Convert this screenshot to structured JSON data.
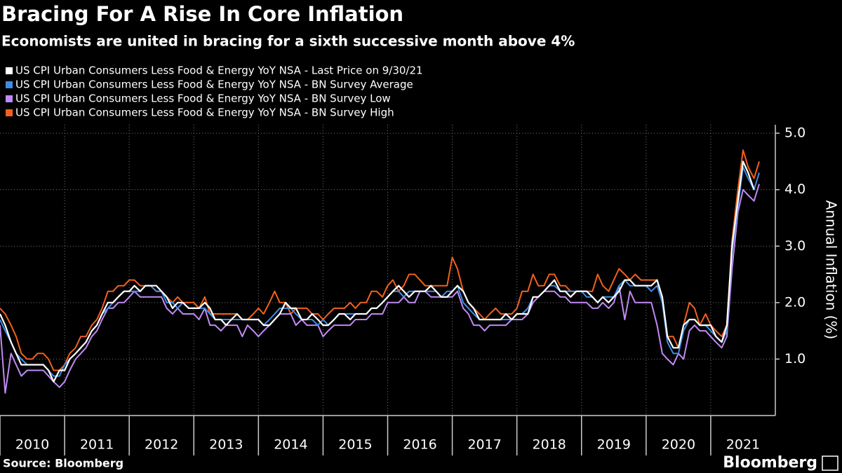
{
  "chart_data": {
    "type": "line",
    "title": "Bracing For A Rise In Core Inflation",
    "subtitle": "Economists are united in bracing for a sixth successive month above 4%",
    "y_axis_label": "Annual Inflation (%)",
    "source": "Source: Bloomberg",
    "brand": "Bloomberg",
    "xlim": [
      2010,
      2022
    ],
    "xticks": [
      {
        "value": 2010,
        "label": "2010"
      },
      {
        "value": 2011,
        "label": "2011"
      },
      {
        "value": 2012,
        "label": "2012"
      },
      {
        "value": 2013,
        "label": "2013"
      },
      {
        "value": 2014,
        "label": "2014"
      },
      {
        "value": 2015,
        "label": "2015"
      },
      {
        "value": 2016,
        "label": "2016"
      },
      {
        "value": 2017,
        "label": "2017"
      },
      {
        "value": 2018,
        "label": "2018"
      },
      {
        "value": 2019,
        "label": "2019"
      },
      {
        "value": 2020,
        "label": "2020"
      },
      {
        "value": 2021,
        "label": "2021"
      }
    ],
    "ylim": [
      0,
      5.15
    ],
    "yticks": [
      {
        "value": 1,
        "label": "1.0"
      },
      {
        "value": 2,
        "label": "2.0"
      },
      {
        "value": 3,
        "label": "3.0"
      },
      {
        "value": 4,
        "label": "4.0"
      },
      {
        "value": 5,
        "label": "5.0"
      }
    ],
    "grid": true,
    "y_axis_side": "right",
    "x": [
      2010.0,
      2010.08,
      2010.17,
      2010.25,
      2010.33,
      2010.42,
      2010.5,
      2010.58,
      2010.67,
      2010.75,
      2010.83,
      2010.92,
      2011.0,
      2011.08,
      2011.17,
      2011.25,
      2011.33,
      2011.42,
      2011.5,
      2011.58,
      2011.67,
      2011.75,
      2011.83,
      2011.92,
      2012.0,
      2012.08,
      2012.17,
      2012.25,
      2012.33,
      2012.42,
      2012.5,
      2012.58,
      2012.67,
      2012.75,
      2012.83,
      2012.92,
      2013.0,
      2013.08,
      2013.17,
      2013.25,
      2013.33,
      2013.42,
      2013.5,
      2013.58,
      2013.67,
      2013.75,
      2013.83,
      2013.92,
      2014.0,
      2014.08,
      2014.17,
      2014.25,
      2014.33,
      2014.42,
      2014.5,
      2014.58,
      2014.67,
      2014.75,
      2014.83,
      2014.92,
      2015.0,
      2015.08,
      2015.17,
      2015.25,
      2015.33,
      2015.42,
      2015.5,
      2015.58,
      2015.67,
      2015.75,
      2015.83,
      2015.92,
      2016.0,
      2016.08,
      2016.17,
      2016.25,
      2016.33,
      2016.42,
      2016.5,
      2016.58,
      2016.67,
      2016.75,
      2016.83,
      2016.92,
      2017.0,
      2017.08,
      2017.17,
      2017.25,
      2017.33,
      2017.42,
      2017.5,
      2017.58,
      2017.67,
      2017.75,
      2017.83,
      2017.92,
      2018.0,
      2018.08,
      2018.17,
      2018.25,
      2018.33,
      2018.42,
      2018.5,
      2018.58,
      2018.67,
      2018.75,
      2018.83,
      2018.92,
      2019.0,
      2019.08,
      2019.17,
      2019.25,
      2019.33,
      2019.42,
      2019.5,
      2019.58,
      2019.67,
      2019.75,
      2019.83,
      2019.92,
      2020.0,
      2020.08,
      2020.17,
      2020.25,
      2020.33,
      2020.42,
      2020.5,
      2020.58,
      2020.67,
      2020.75,
      2020.83,
      2020.92,
      2021.0,
      2021.08,
      2021.17,
      2021.25,
      2021.33,
      2021.42,
      2021.5,
      2021.58,
      2021.67,
      2021.75
    ],
    "series": [
      {
        "name": "US CPI Urban Consumers Less Food & Energy YoY NSA - Last Price on 9/30/21",
        "color": "#ffffff",
        "values": [
          1.8,
          1.6,
          1.3,
          1.1,
          0.9,
          0.9,
          0.9,
          0.9,
          0.9,
          0.8,
          0.6,
          0.8,
          0.8,
          1.0,
          1.1,
          1.2,
          1.3,
          1.5,
          1.6,
          1.8,
          2.0,
          2.0,
          2.1,
          2.2,
          2.2,
          2.3,
          2.2,
          2.3,
          2.3,
          2.3,
          2.2,
          2.1,
          1.9,
          2.0,
          2.0,
          1.9,
          1.9,
          1.9,
          2.0,
          1.9,
          1.7,
          1.7,
          1.6,
          1.7,
          1.8,
          1.7,
          1.7,
          1.7,
          1.7,
          1.6,
          1.6,
          1.7,
          1.8,
          2.0,
          1.9,
          1.9,
          1.7,
          1.7,
          1.8,
          1.7,
          1.6,
          1.6,
          1.7,
          1.8,
          1.8,
          1.7,
          1.8,
          1.8,
          1.8,
          1.9,
          1.9,
          2.0,
          2.1,
          2.2,
          2.3,
          2.2,
          2.1,
          2.2,
          2.2,
          2.2,
          2.3,
          2.2,
          2.1,
          2.1,
          2.2,
          2.3,
          2.2,
          2.0,
          1.9,
          1.7,
          1.7,
          1.7,
          1.7,
          1.7,
          1.8,
          1.7,
          1.8,
          1.8,
          1.8,
          2.1,
          2.1,
          2.2,
          2.3,
          2.4,
          2.2,
          2.2,
          2.1,
          2.2,
          2.2,
          2.2,
          2.1,
          2.0,
          2.1,
          2.0,
          2.1,
          2.2,
          2.4,
          2.4,
          2.3,
          2.3,
          2.3,
          2.3,
          2.4,
          2.1,
          1.4,
          1.2,
          1.2,
          1.6,
          1.7,
          1.7,
          1.6,
          1.6,
          1.6,
          1.4,
          1.3,
          1.6,
          3.0,
          3.8,
          4.5,
          4.3,
          4.0,
          null
        ]
      },
      {
        "name": "US CPI Urban Consumers Less Food & Energy YoY NSA - BN Survey Average",
        "color": "#3d8ee6",
        "values": [
          1.7,
          1.5,
          1.3,
          1.1,
          1.0,
          0.9,
          0.9,
          0.9,
          0.9,
          0.8,
          0.7,
          0.7,
          0.9,
          1.0,
          1.1,
          1.2,
          1.3,
          1.5,
          1.6,
          1.8,
          1.9,
          2.0,
          2.1,
          2.2,
          2.2,
          2.2,
          2.2,
          2.3,
          2.3,
          2.2,
          2.2,
          2.0,
          2.0,
          1.9,
          2.0,
          1.9,
          1.9,
          1.9,
          1.9,
          1.8,
          1.7,
          1.7,
          1.7,
          1.7,
          1.7,
          1.7,
          1.7,
          1.7,
          1.7,
          1.6,
          1.7,
          1.8,
          1.9,
          1.9,
          1.9,
          1.8,
          1.7,
          1.7,
          1.7,
          1.6,
          1.7,
          1.6,
          1.7,
          1.8,
          1.8,
          1.8,
          1.8,
          1.8,
          1.8,
          1.9,
          1.9,
          2.0,
          2.1,
          2.2,
          2.2,
          2.1,
          2.2,
          2.2,
          2.2,
          2.2,
          2.2,
          2.2,
          2.1,
          2.2,
          2.2,
          2.3,
          2.0,
          1.9,
          1.8,
          1.7,
          1.7,
          1.7,
          1.7,
          1.7,
          1.7,
          1.7,
          1.8,
          1.8,
          1.9,
          2.1,
          2.1,
          2.2,
          2.3,
          2.3,
          2.2,
          2.2,
          2.2,
          2.2,
          2.2,
          2.1,
          2.1,
          2.0,
          2.1,
          2.1,
          2.1,
          2.3,
          2.4,
          2.3,
          2.3,
          2.3,
          2.3,
          2.2,
          2.3,
          2.0,
          1.3,
          1.1,
          1.1,
          1.5,
          1.7,
          1.7,
          1.6,
          1.6,
          1.5,
          1.4,
          1.3,
          1.5,
          2.9,
          3.7,
          4.4,
          4.2,
          4.0,
          4.3
        ]
      },
      {
        "name": "US CPI Urban Consumers Less Food & Energy YoY NSA - BN Survey Low",
        "color": "#c08af5",
        "values": [
          1.6,
          0.4,
          1.1,
          0.9,
          0.7,
          0.8,
          0.8,
          0.8,
          0.8,
          0.7,
          0.6,
          0.5,
          0.6,
          0.8,
          1.0,
          1.1,
          1.2,
          1.4,
          1.5,
          1.7,
          1.9,
          1.9,
          2.0,
          2.0,
          2.1,
          2.2,
          2.1,
          2.1,
          2.1,
          2.1,
          2.1,
          1.9,
          1.8,
          1.9,
          1.8,
          1.8,
          1.8,
          1.7,
          1.9,
          1.6,
          1.6,
          1.5,
          1.6,
          1.6,
          1.6,
          1.4,
          1.6,
          1.5,
          1.4,
          1.5,
          1.6,
          1.7,
          1.8,
          1.8,
          1.8,
          1.6,
          1.7,
          1.6,
          1.6,
          1.6,
          1.4,
          1.5,
          1.6,
          1.6,
          1.6,
          1.6,
          1.7,
          1.7,
          1.7,
          1.8,
          1.8,
          1.8,
          2.0,
          2.0,
          2.0,
          2.1,
          2.0,
          2.0,
          2.2,
          2.2,
          2.1,
          2.1,
          2.1,
          2.1,
          2.1,
          2.2,
          1.9,
          1.8,
          1.6,
          1.6,
          1.5,
          1.6,
          1.6,
          1.6,
          1.6,
          1.7,
          1.7,
          1.7,
          1.8,
          2.0,
          2.1,
          2.2,
          2.2,
          2.2,
          2.1,
          2.1,
          2.0,
          2.0,
          2.0,
          2.0,
          1.9,
          1.9,
          2.0,
          1.9,
          2.0,
          2.3,
          1.7,
          2.2,
          2.0,
          2.0,
          2.0,
          2.0,
          1.6,
          1.1,
          1.0,
          0.9,
          1.1,
          1.0,
          1.5,
          1.6,
          1.5,
          1.5,
          1.4,
          1.3,
          1.2,
          1.4,
          2.6,
          3.6,
          4.0,
          3.9,
          3.8,
          4.1
        ]
      },
      {
        "name": "US CPI Urban Consumers Less Food & Energy YoY NSA - BN Survey High",
        "color": "#f2611d",
        "values": [
          1.9,
          1.8,
          1.6,
          1.4,
          1.1,
          1.0,
          1.0,
          1.1,
          1.1,
          1.0,
          0.8,
          0.8,
          0.9,
          1.1,
          1.2,
          1.4,
          1.4,
          1.6,
          1.7,
          1.9,
          2.2,
          2.2,
          2.3,
          2.3,
          2.4,
          2.4,
          2.3,
          2.3,
          2.3,
          2.2,
          2.2,
          2.1,
          2.0,
          2.1,
          2.0,
          2.0,
          2.0,
          1.9,
          2.1,
          1.8,
          1.8,
          1.8,
          1.8,
          1.8,
          1.8,
          1.7,
          1.7,
          1.8,
          1.9,
          1.8,
          2.0,
          2.2,
          2.0,
          2.0,
          1.8,
          1.9,
          1.9,
          1.9,
          1.8,
          1.8,
          1.7,
          1.8,
          1.9,
          1.9,
          1.9,
          2.0,
          1.9,
          2.0,
          2.0,
          2.2,
          2.2,
          2.1,
          2.3,
          2.4,
          2.2,
          2.3,
          2.5,
          2.5,
          2.4,
          2.3,
          2.3,
          2.3,
          2.3,
          2.3,
          2.8,
          2.6,
          2.2,
          2.0,
          1.9,
          1.8,
          1.7,
          1.8,
          1.9,
          1.8,
          1.8,
          1.8,
          1.9,
          2.2,
          2.2,
          2.5,
          2.3,
          2.3,
          2.5,
          2.5,
          2.3,
          2.3,
          2.2,
          2.2,
          2.2,
          2.2,
          2.2,
          2.5,
          2.3,
          2.2,
          2.4,
          2.6,
          2.5,
          2.4,
          2.5,
          2.4,
          2.4,
          2.4,
          2.4,
          2.0,
          1.4,
          1.4,
          1.2,
          1.6,
          2.0,
          1.9,
          1.6,
          1.8,
          1.6,
          1.5,
          1.4,
          1.6,
          3.1,
          4.0,
          4.7,
          4.4,
          4.2,
          4.5
        ]
      }
    ]
  }
}
